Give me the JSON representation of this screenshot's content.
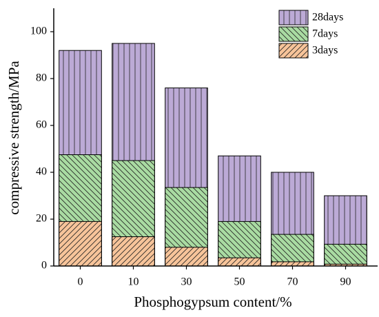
{
  "chart_data": {
    "type": "bar",
    "xlabel": "Phosphogypsum content/%",
    "ylabel": "compressive strength/MPa",
    "categories": [
      "0",
      "10",
      "30",
      "50",
      "70",
      "90"
    ],
    "series": [
      {
        "name": "3days",
        "color": "#f7c49a",
        "hatch": "/",
        "values": [
          19,
          12.5,
          8,
          3.5,
          1.8,
          0.8
        ]
      },
      {
        "name": "7days",
        "color": "#a9dba2",
        "hatch": "\\",
        "values": [
          47.5,
          45,
          33.5,
          19,
          13.5,
          9.3
        ]
      },
      {
        "name": "28days",
        "color": "#bcaad6",
        "hatch": "|",
        "values": [
          92,
          95,
          76,
          47,
          40,
          30
        ]
      }
    ],
    "ylim": [
      0,
      110
    ],
    "yticks": [
      0,
      20,
      40,
      60,
      80,
      100
    ],
    "legend": "upper right"
  }
}
